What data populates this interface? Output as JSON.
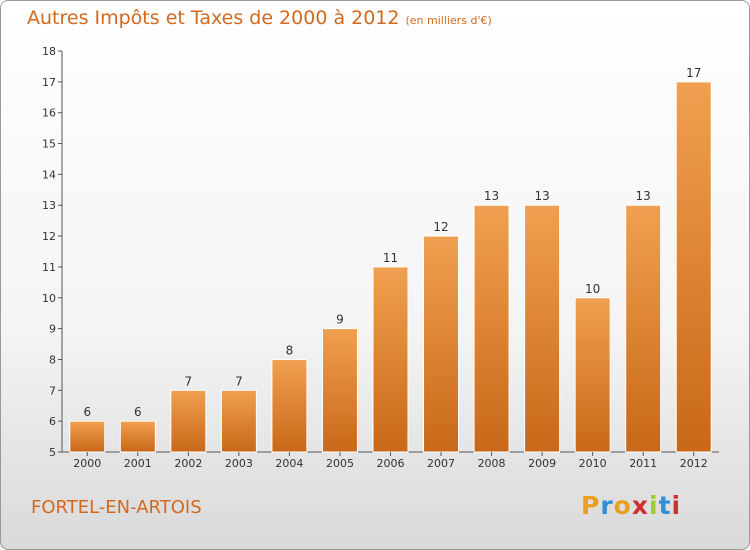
{
  "chart_data": {
    "type": "bar",
    "title": "Autres Impôts et Taxes de 2000 à 2012",
    "subtitle": "(en milliers d'€)",
    "categories": [
      "2000",
      "2001",
      "2002",
      "2003",
      "2004",
      "2005",
      "2006",
      "2007",
      "2008",
      "2009",
      "2010",
      "2011",
      "2012"
    ],
    "values": [
      6,
      6,
      7,
      7,
      8,
      9,
      11,
      12,
      13,
      13,
      10,
      13,
      17
    ],
    "ylim": [
      5,
      18
    ],
    "yticks": [
      5,
      6,
      7,
      8,
      9,
      10,
      11,
      12,
      13,
      14,
      15,
      16,
      17,
      18
    ],
    "grid": false,
    "legend": "none",
    "bar_color": "#f0a050"
  },
  "footer": {
    "town": "FORTEL-EN-ARTOIS",
    "brand_letters": [
      "P",
      "r",
      "o",
      "x",
      "i",
      "t",
      "i"
    ],
    "brand_colors": [
      "#e8a020",
      "#2f8fd8",
      "#e8a020",
      "#d03030",
      "#9acd32",
      "#2f8fd8",
      "#d03030"
    ]
  }
}
